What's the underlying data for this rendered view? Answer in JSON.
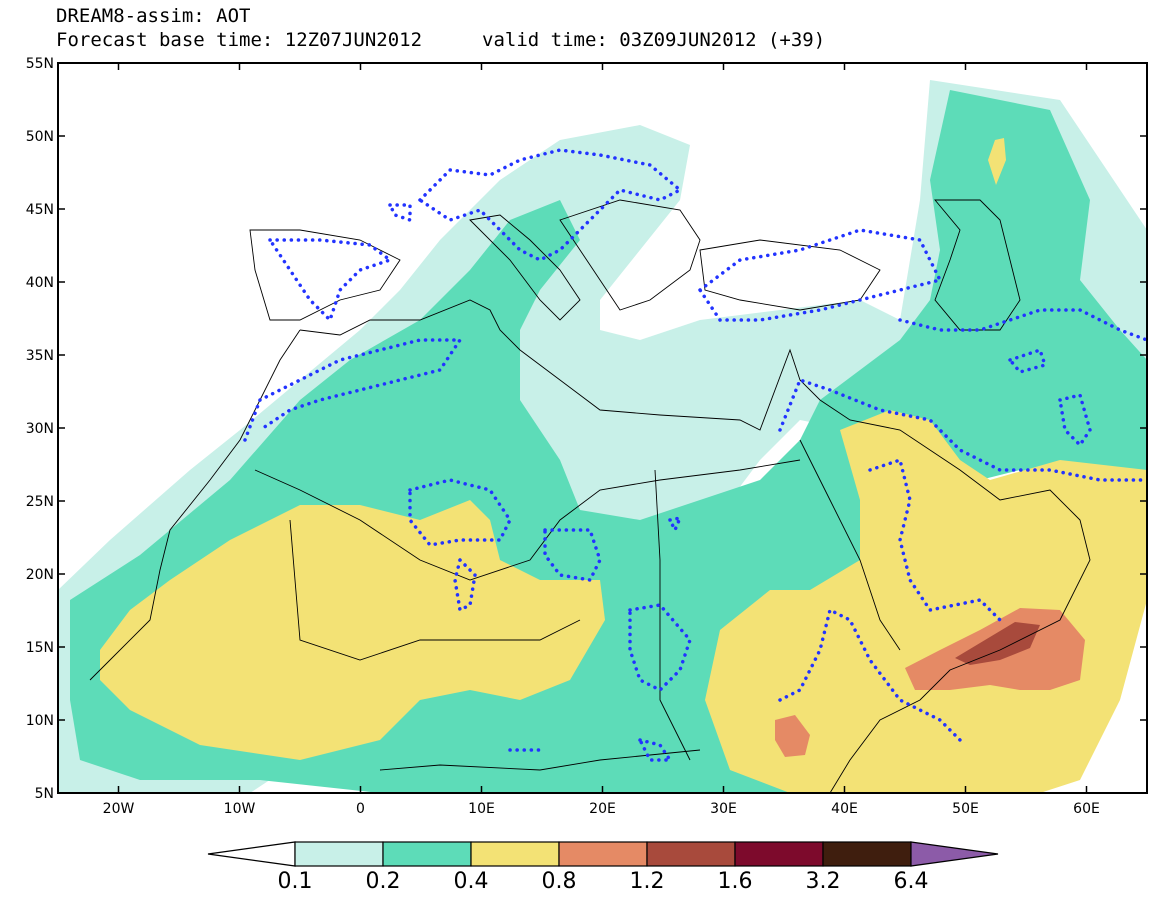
{
  "title": {
    "model": "DREAM8-assim: AOT",
    "base_time": "Forecast base time: 12Z07JUN2012",
    "valid_time": "valid time: 03Z09JUN2012 (+39)"
  },
  "axes": {
    "lat_labels": [
      "55N",
      "50N",
      "45N",
      "40N",
      "35N",
      "30N",
      "25N",
      "20N",
      "15N",
      "10N",
      "5N"
    ],
    "lon_labels": [
      "20W",
      "10W",
      "0",
      "10E",
      "20E",
      "30E",
      "40E",
      "50E",
      "60E"
    ],
    "lon_range": [
      -25,
      65
    ],
    "lat_range": [
      5,
      55
    ]
  },
  "colorbar": {
    "levels": [
      "0.1",
      "0.2",
      "0.4",
      "0.8",
      "1.2",
      "1.6",
      "3.2",
      "6.4"
    ],
    "colors": [
      "#ffffff",
      "#c8f0e8",
      "#5ddcb8",
      "#f3e275",
      "#e58a65",
      "#a84a3c",
      "#7d0a2c",
      "#3f1e0e",
      "#8c5ba8"
    ]
  }
}
